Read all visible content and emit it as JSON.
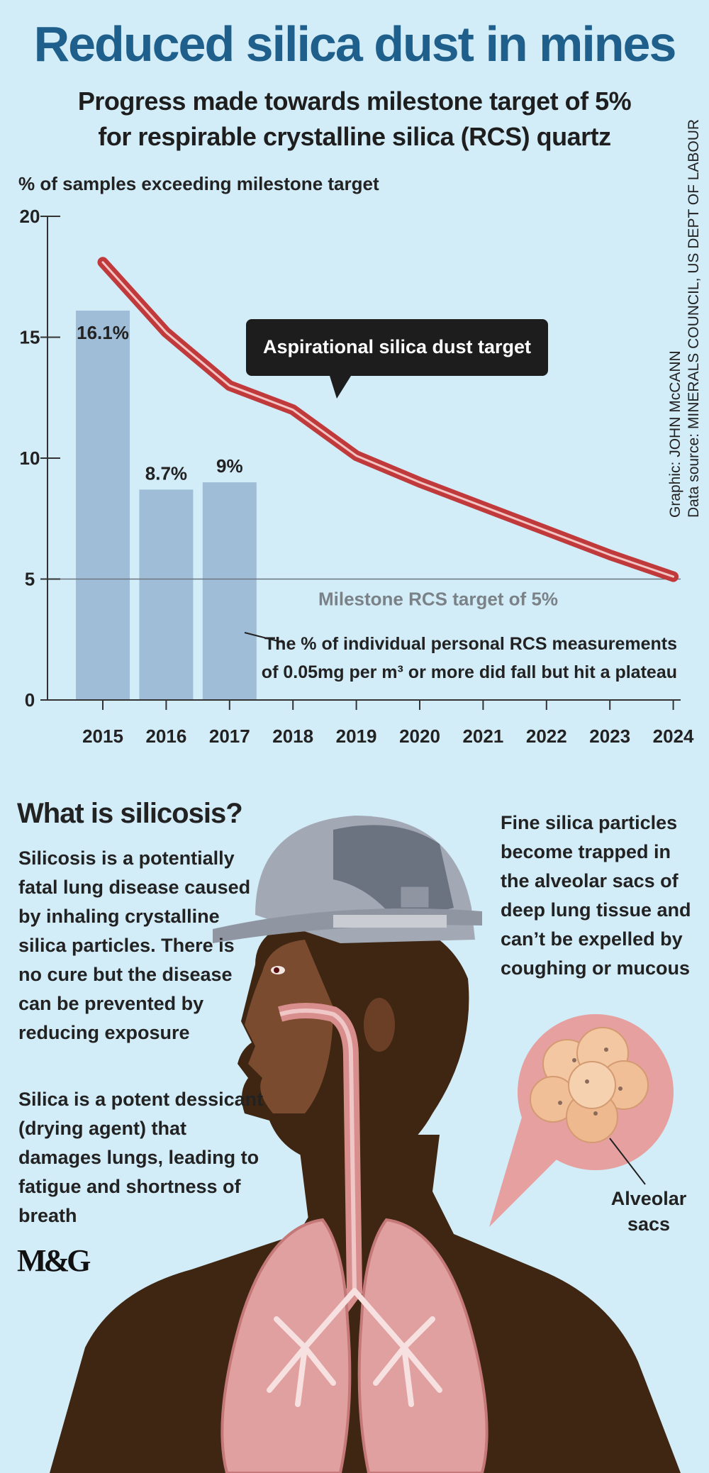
{
  "title": "Reduced silica dust in mines",
  "subtitle_line1": "Progress made towards milestone target of 5%",
  "subtitle_line2": "for respirable crystalline silica (RCS) quartz",
  "credits": {
    "graphic": "Graphic: JOHN McCANN",
    "source": "Data source: MINERALS COUNCIL, US DEPT OF LABOUR"
  },
  "chart_data": {
    "type": "bar",
    "ylabel": "% of samples exceeding milestone target",
    "ylim": [
      0,
      20
    ],
    "yticks": [
      "0",
      "5",
      "10",
      "15",
      "20"
    ],
    "categories": [
      "2015",
      "2016",
      "2017",
      "2018",
      "2019",
      "2020",
      "2021",
      "2022",
      "2023",
      "2024"
    ],
    "bars": {
      "categories": [
        "2015",
        "2016",
        "2017"
      ],
      "values": [
        16.1,
        8.7,
        9
      ],
      "labels": [
        "16.1%",
        "8.7%",
        "9%"
      ],
      "color": "#9fbdd6"
    },
    "line": {
      "x": [
        "2015",
        "2016",
        "2017",
        "2018",
        "2019",
        "2020",
        "2021",
        "2022",
        "2023",
        "2024"
      ],
      "values": [
        18.1,
        15.2,
        13,
        12,
        10.1,
        9,
        8,
        7,
        6,
        5.1
      ],
      "color": "#c0393b"
    },
    "reference_line": {
      "value": 5,
      "label": "Milestone RCS target of 5%"
    },
    "callout": "Aspirational silica dust target",
    "annotation_line1": "The % of individual personal RCS measurements",
    "annotation_line2": "of 0.05mg per m³ or more did fall but hit a plateau"
  },
  "silicosis": {
    "heading": "What is silicosis?",
    "para1": "Silicosis is a potentially fatal lung disease caused by inhaling crystalline silica particles. There is no cure but the disease can be prevented by reducing exposure",
    "para2": "Silica is a potent dessicant (drying agent) that damages lungs, leading to fatigue and shortness of breath",
    "para3": "Fine silica particles become trapped in the alveolar sacs of deep lung tissue and can’t be expelled by coughing or mucous",
    "alveolar_label": "Alveolar sacs"
  },
  "logo": "M&G",
  "colors": {
    "title": "#1f5f8b",
    "background": "#d2ecf8",
    "line": "#c0393b",
    "bar": "#9fbdd6"
  }
}
